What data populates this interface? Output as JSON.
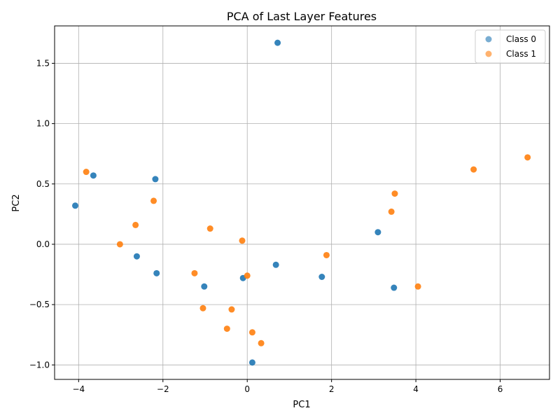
{
  "chart_data": {
    "type": "scatter",
    "title": "PCA of Last Layer Features",
    "xlabel": "PC1",
    "ylabel": "PC2",
    "xlim": [
      -4.57,
      7.17
    ],
    "ylim": [
      -1.12,
      1.81
    ],
    "xticks": [
      -4,
      -2,
      0,
      2,
      4,
      6
    ],
    "yticks": [
      -1.0,
      -0.5,
      0.0,
      0.5,
      1.0,
      1.5
    ],
    "xtick_labels": [
      "−4",
      "−2",
      "0",
      "2",
      "4",
      "6"
    ],
    "ytick_labels": [
      "−1.0",
      "−0.5",
      "0.0",
      "0.5",
      "1.0",
      "1.5"
    ],
    "grid": true,
    "legend_position": "top-right",
    "series": [
      {
        "name": "Class 0",
        "color": "#1f77b4",
        "points": [
          [
            0.72,
            1.67
          ],
          [
            -3.65,
            0.57
          ],
          [
            -4.08,
            0.32
          ],
          [
            -2.18,
            0.54
          ],
          [
            -2.62,
            -0.1
          ],
          [
            -2.15,
            -0.24
          ],
          [
            -1.02,
            -0.35
          ],
          [
            -0.1,
            -0.28
          ],
          [
            0.68,
            -0.17
          ],
          [
            1.77,
            -0.27
          ],
          [
            3.1,
            0.1
          ],
          [
            3.48,
            -0.36
          ],
          [
            0.12,
            -0.98
          ]
        ]
      },
      {
        "name": "Class 1",
        "color": "#ff7f0e",
        "points": [
          [
            -3.82,
            0.6
          ],
          [
            -2.22,
            0.36
          ],
          [
            -2.65,
            0.16
          ],
          [
            -3.02,
            0.0
          ],
          [
            -0.88,
            0.13
          ],
          [
            -0.12,
            0.03
          ],
          [
            -1.25,
            -0.24
          ],
          [
            0.0,
            -0.26
          ],
          [
            -1.05,
            -0.53
          ],
          [
            -0.37,
            -0.54
          ],
          [
            -0.48,
            -0.7
          ],
          [
            0.12,
            -0.73
          ],
          [
            0.33,
            -0.82
          ],
          [
            1.88,
            -0.09
          ],
          [
            3.42,
            0.27
          ],
          [
            3.5,
            0.42
          ],
          [
            4.05,
            -0.35
          ],
          [
            5.37,
            0.62
          ],
          [
            6.65,
            0.72
          ]
        ]
      }
    ]
  }
}
